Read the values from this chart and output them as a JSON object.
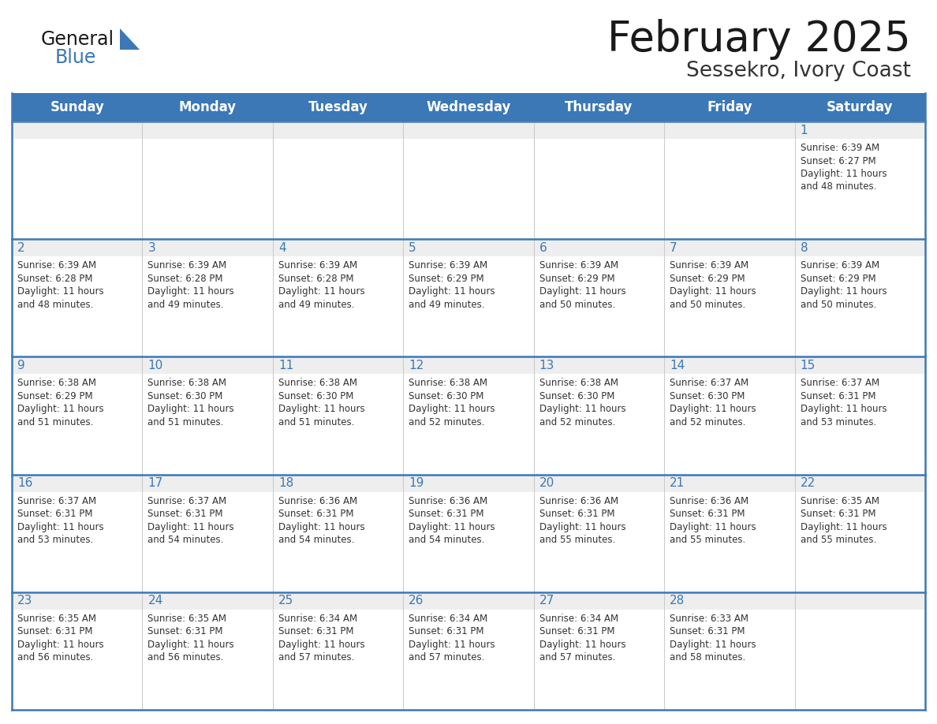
{
  "title": "February 2025",
  "subtitle": "Sessekro, Ivory Coast",
  "header_bg_color": "#3B78B5",
  "header_text_color": "#FFFFFF",
  "day_headers": [
    "Sunday",
    "Monday",
    "Tuesday",
    "Wednesday",
    "Thursday",
    "Friday",
    "Saturday"
  ],
  "title_color": "#1a1a1a",
  "subtitle_color": "#333333",
  "border_color": "#3B78B5",
  "day_number_color": "#3B78B5",
  "text_color": "#333333",
  "cell_top_bg": "#EEEEEE",
  "cell_body_bg": "#FFFFFF",
  "col_divider_color": "#CCCCCC",
  "row_divider_color": "#3B78B5",
  "calendar_data": [
    [
      null,
      null,
      null,
      null,
      null,
      null,
      {
        "day": 1,
        "sunrise": "6:39 AM",
        "sunset": "6:27 PM",
        "daylight": "11 hours and 48 minutes."
      }
    ],
    [
      {
        "day": 2,
        "sunrise": "6:39 AM",
        "sunset": "6:28 PM",
        "daylight": "11 hours and 48 minutes."
      },
      {
        "day": 3,
        "sunrise": "6:39 AM",
        "sunset": "6:28 PM",
        "daylight": "11 hours and 49 minutes."
      },
      {
        "day": 4,
        "sunrise": "6:39 AM",
        "sunset": "6:28 PM",
        "daylight": "11 hours and 49 minutes."
      },
      {
        "day": 5,
        "sunrise": "6:39 AM",
        "sunset": "6:29 PM",
        "daylight": "11 hours and 49 minutes."
      },
      {
        "day": 6,
        "sunrise": "6:39 AM",
        "sunset": "6:29 PM",
        "daylight": "11 hours and 50 minutes."
      },
      {
        "day": 7,
        "sunrise": "6:39 AM",
        "sunset": "6:29 PM",
        "daylight": "11 hours and 50 minutes."
      },
      {
        "day": 8,
        "sunrise": "6:39 AM",
        "sunset": "6:29 PM",
        "daylight": "11 hours and 50 minutes."
      }
    ],
    [
      {
        "day": 9,
        "sunrise": "6:38 AM",
        "sunset": "6:29 PM",
        "daylight": "11 hours and 51 minutes."
      },
      {
        "day": 10,
        "sunrise": "6:38 AM",
        "sunset": "6:30 PM",
        "daylight": "11 hours and 51 minutes."
      },
      {
        "day": 11,
        "sunrise": "6:38 AM",
        "sunset": "6:30 PM",
        "daylight": "11 hours and 51 minutes."
      },
      {
        "day": 12,
        "sunrise": "6:38 AM",
        "sunset": "6:30 PM",
        "daylight": "11 hours and 52 minutes."
      },
      {
        "day": 13,
        "sunrise": "6:38 AM",
        "sunset": "6:30 PM",
        "daylight": "11 hours and 52 minutes."
      },
      {
        "day": 14,
        "sunrise": "6:37 AM",
        "sunset": "6:30 PM",
        "daylight": "11 hours and 52 minutes."
      },
      {
        "day": 15,
        "sunrise": "6:37 AM",
        "sunset": "6:31 PM",
        "daylight": "11 hours and 53 minutes."
      }
    ],
    [
      {
        "day": 16,
        "sunrise": "6:37 AM",
        "sunset": "6:31 PM",
        "daylight": "11 hours and 53 minutes."
      },
      {
        "day": 17,
        "sunrise": "6:37 AM",
        "sunset": "6:31 PM",
        "daylight": "11 hours and 54 minutes."
      },
      {
        "day": 18,
        "sunrise": "6:36 AM",
        "sunset": "6:31 PM",
        "daylight": "11 hours and 54 minutes."
      },
      {
        "day": 19,
        "sunrise": "6:36 AM",
        "sunset": "6:31 PM",
        "daylight": "11 hours and 54 minutes."
      },
      {
        "day": 20,
        "sunrise": "6:36 AM",
        "sunset": "6:31 PM",
        "daylight": "11 hours and 55 minutes."
      },
      {
        "day": 21,
        "sunrise": "6:36 AM",
        "sunset": "6:31 PM",
        "daylight": "11 hours and 55 minutes."
      },
      {
        "day": 22,
        "sunrise": "6:35 AM",
        "sunset": "6:31 PM",
        "daylight": "11 hours and 55 minutes."
      }
    ],
    [
      {
        "day": 23,
        "sunrise": "6:35 AM",
        "sunset": "6:31 PM",
        "daylight": "11 hours and 56 minutes."
      },
      {
        "day": 24,
        "sunrise": "6:35 AM",
        "sunset": "6:31 PM",
        "daylight": "11 hours and 56 minutes."
      },
      {
        "day": 25,
        "sunrise": "6:34 AM",
        "sunset": "6:31 PM",
        "daylight": "11 hours and 57 minutes."
      },
      {
        "day": 26,
        "sunrise": "6:34 AM",
        "sunset": "6:31 PM",
        "daylight": "11 hours and 57 minutes."
      },
      {
        "day": 27,
        "sunrise": "6:34 AM",
        "sunset": "6:31 PM",
        "daylight": "11 hours and 57 minutes."
      },
      {
        "day": 28,
        "sunrise": "6:33 AM",
        "sunset": "6:31 PM",
        "daylight": "11 hours and 58 minutes."
      },
      null
    ]
  ]
}
